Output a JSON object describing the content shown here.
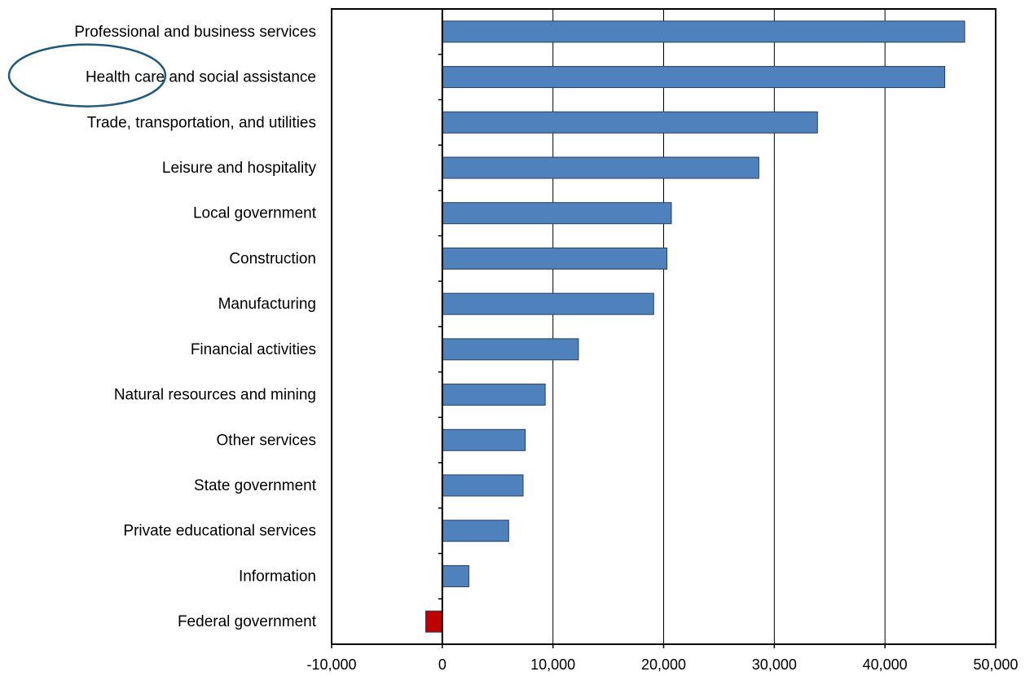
{
  "chart_data": {
    "type": "bar",
    "orientation": "horizontal",
    "categories": [
      "Professional and business services",
      "Health care and social assistance",
      "Trade, transportation, and utilities",
      "Leisure and hospitality",
      "Local government",
      "Construction",
      "Manufacturing",
      "Financial activities",
      "Natural resources and mining",
      "Other services",
      "State government",
      "Private educational services",
      "Information",
      "Federal government"
    ],
    "values": [
      47200,
      45400,
      33900,
      28600,
      20700,
      20300,
      19100,
      12300,
      9300,
      7500,
      7300,
      6000,
      2400,
      -1500
    ],
    "xlim": [
      -10000,
      50000
    ],
    "xticks": [
      -10000,
      0,
      10000,
      20000,
      30000,
      40000,
      50000
    ],
    "xtick_labels": [
      "-10,000",
      "0",
      "10,000",
      "20,000",
      "30,000",
      "40,000",
      "50,000"
    ],
    "grid": "vertical",
    "colors": {
      "positive": "#4f81bd",
      "negative": "#c00000",
      "bar_stroke": "#243f60",
      "highlight_ellipse": "#1f5a7a"
    },
    "highlighted_category": "Health care and social assistance"
  }
}
